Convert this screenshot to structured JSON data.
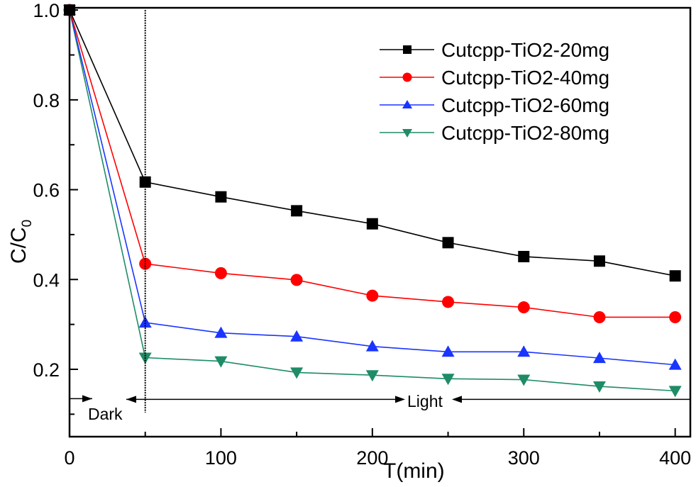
{
  "chart_data": {
    "type": "line",
    "title": "",
    "xlabel": "T(min)",
    "ylabel": "C/C",
    "ylabel_subscript": "0",
    "xlim": [
      0,
      410
    ],
    "ylim": [
      0.05,
      1.005
    ],
    "x_ticks": [
      0,
      100,
      200,
      300,
      400
    ],
    "x_tick_labels": [
      "0",
      "100",
      "200",
      "300",
      "400"
    ],
    "x_minor_ticks": [
      50,
      150,
      250,
      350
    ],
    "y_ticks": [
      0.2,
      0.4,
      0.6,
      0.8,
      1.0
    ],
    "y_tick_labels": [
      "0.2",
      "0.4",
      "0.6",
      "0.8",
      "1.0"
    ],
    "y_minor_ticks": [
      0.1,
      0.3,
      0.5,
      0.7,
      0.9
    ],
    "grid": false,
    "legend_position": "top-right",
    "x": [
      0,
      50,
      100,
      150,
      200,
      250,
      300,
      350,
      400
    ],
    "series": [
      {
        "name": "Cutcpp-TiO2-20mg",
        "color": "#000000",
        "marker": "square",
        "values": [
          1.0,
          0.617,
          0.584,
          0.553,
          0.524,
          0.482,
          0.451,
          0.441,
          0.408
        ]
      },
      {
        "name": "Cutcpp-TiO2-40mg",
        "color": "#ff0000",
        "marker": "circle",
        "values": [
          1.0,
          0.435,
          0.414,
          0.399,
          0.364,
          0.35,
          0.338,
          0.316,
          0.316
        ]
      },
      {
        "name": "Cutcpp-TiO2-60mg",
        "color": "#1a35ff",
        "marker": "triangle-up",
        "values": [
          1.0,
          0.304,
          0.281,
          0.273,
          0.251,
          0.239,
          0.239,
          0.225,
          0.21
        ]
      },
      {
        "name": "Cutcpp-TiO2-80mg",
        "color": "#1e8c66",
        "marker": "triangle-down",
        "values": [
          1.0,
          0.226,
          0.218,
          0.193,
          0.187,
          0.179,
          0.177,
          0.162,
          0.152
        ]
      }
    ],
    "annotations": {
      "divider_x": 50,
      "arrow_y": 0.133,
      "dark_label": "Dark",
      "light_label": "Light"
    }
  }
}
